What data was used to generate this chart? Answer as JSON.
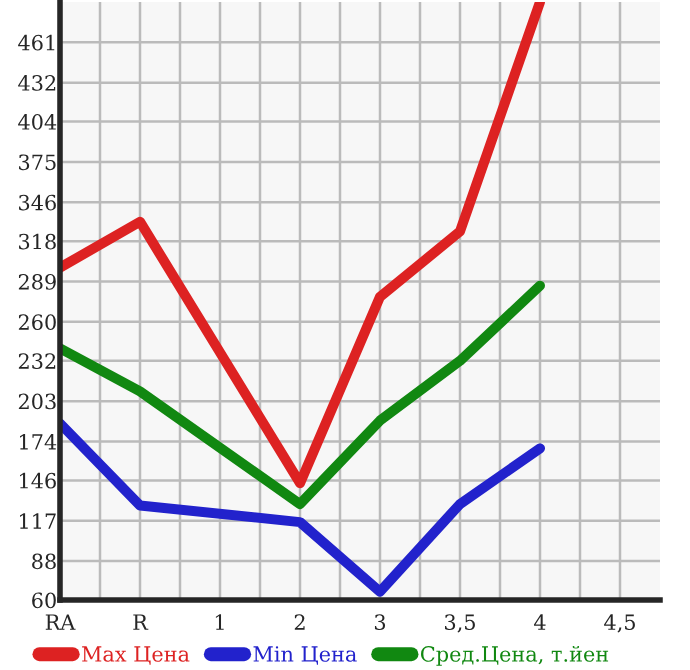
{
  "chart_data": {
    "type": "line",
    "categories": [
      "RA",
      "R",
      "1",
      "2",
      "3",
      "3,5",
      "4",
      "4,5"
    ],
    "series": [
      {
        "name": "Max Цена",
        "color": "#dd2222",
        "values": [
          299,
          332,
          null,
          144,
          278,
          325,
          490,
          null
        ]
      },
      {
        "name": "Min Цена",
        "color": "#2222cc",
        "values": [
          187,
          128,
          null,
          116,
          66,
          129,
          169,
          null
        ]
      },
      {
        "name": "Сред.Цена, т.йен",
        "color": "#118811",
        "values": [
          241,
          210,
          null,
          129,
          189,
          232,
          286,
          null
        ]
      }
    ],
    "ylim": [
      60,
      490
    ],
    "yticks": [
      60,
      88,
      117,
      146,
      174,
      203,
      232,
      260,
      289,
      318,
      346,
      375,
      404,
      432,
      461
    ],
    "grid": true,
    "legend": "bottom",
    "marker": "none",
    "line_style": "solid"
  }
}
